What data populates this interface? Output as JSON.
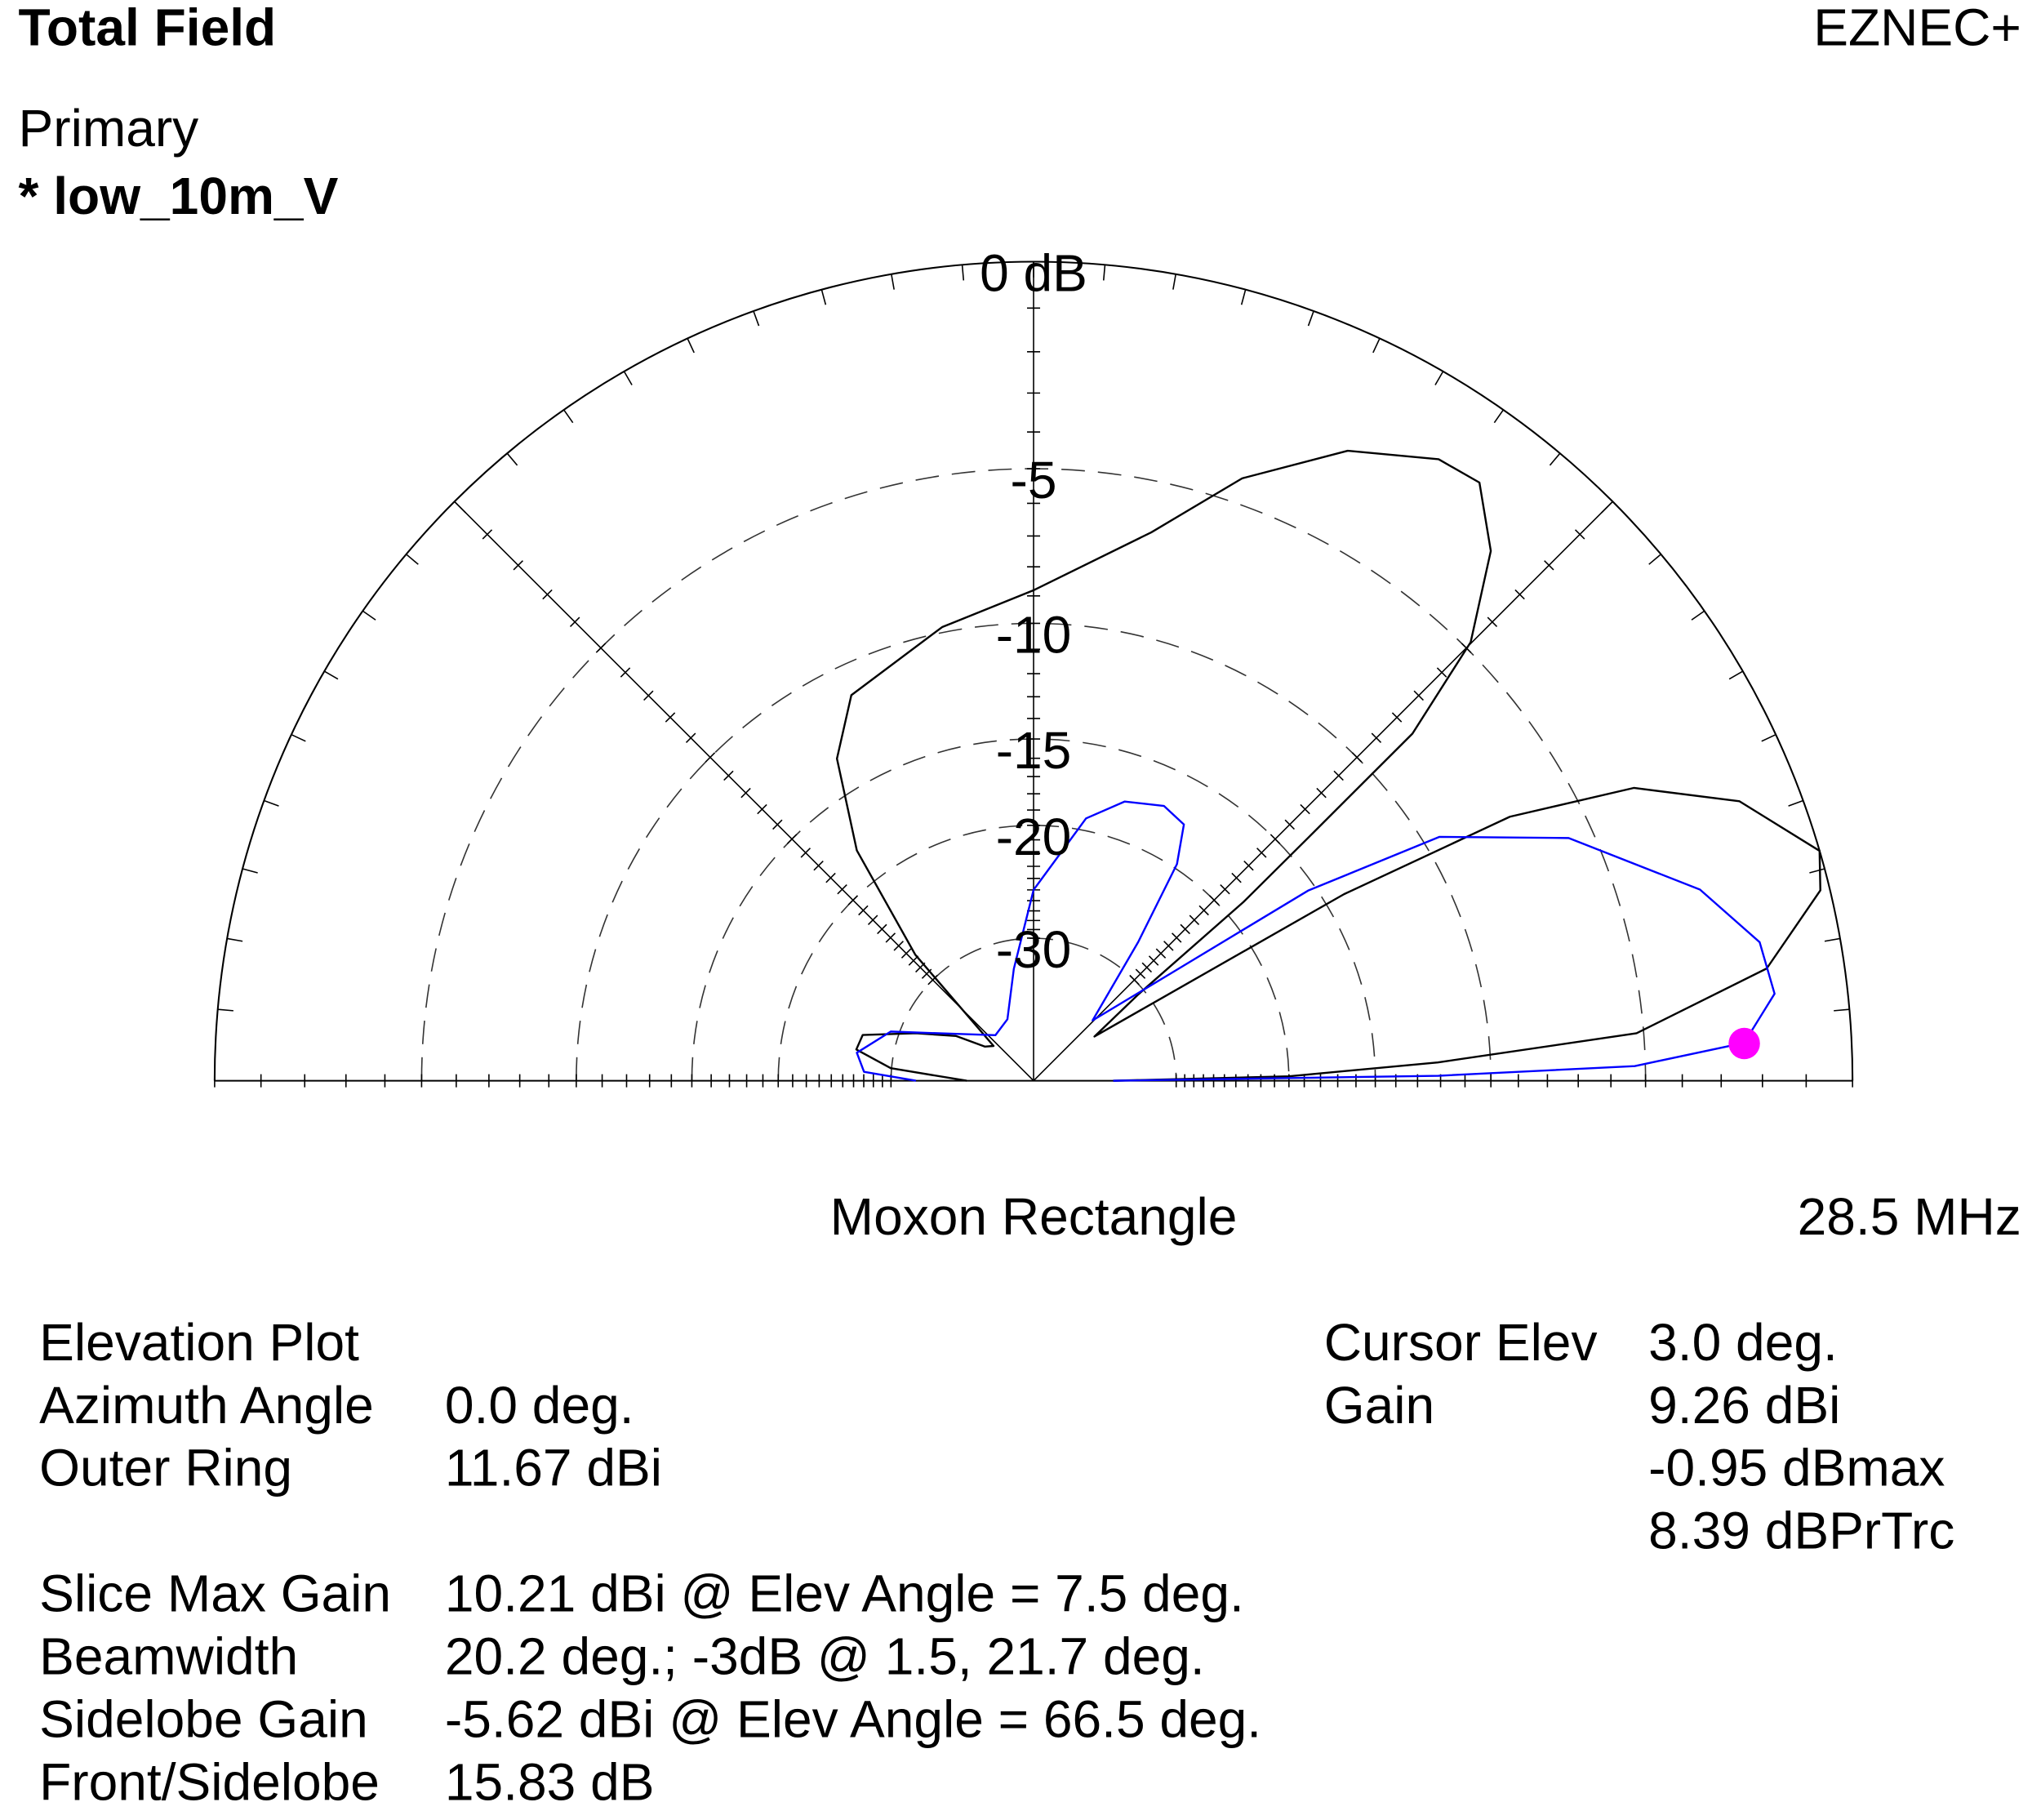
{
  "chart_data": {
    "type": "polar",
    "title": "Total Field",
    "program": "EZNEC+",
    "subtitle": "Moxon Rectangle",
    "frequency": "28.5 MHz",
    "scale": "arrl-log",
    "rticks": [
      {
        "value": 0,
        "label": "0 dB"
      },
      -5,
      -10,
      -15,
      -20,
      -30
    ],
    "series": [
      {
        "name": "Primary",
        "color": "#000000",
        "theta": [
          0,
          1,
          2.6,
          4.5,
          8.7,
          13.6,
          16.3,
          21.6,
          26,
          29,
          31,
          33,
          36,
          39.5,
          40.4,
          41.5,
          42.5,
          45.1,
          49.2,
          53.3,
          56.9,
          63.5,
          70.9,
          77.9,
          90,
          101.4,
          115.3,
          121.4,
          127.5,
          133.2,
          139,
          145,
          150,
          158,
          165,
          170,
          175,
          180
        ],
        "values": [
          -40,
          -20,
          -12.1,
          -5.2,
          -1.7,
          -0.2,
          0,
          -1.3,
          -3.5,
          -7,
          -14,
          -30,
          -41,
          -30.8,
          -18.7,
          -13.8,
          -8,
          -4.8,
          -2.7,
          -1.6,
          -1.7,
          -2.6,
          -4.3,
          -6.5,
          -8.8,
          -9.8,
          -11.2,
          -13.3,
          -17.8,
          -26.7,
          -47,
          -45,
          -38,
          -32,
          -26.3,
          -26,
          -29.9,
          -43
        ]
      },
      {
        "name": "* low_10m_V",
        "color": "#0000ff",
        "theta": [
          0,
          0.7,
          1.4,
          3.06,
          6.7,
          10.8,
          16,
          24.4,
          31,
          34.7,
          38,
          45.6,
          53,
          56.5,
          59.6,
          64.6,
          71.9,
          78.7,
          90,
          100,
          113,
          130,
          152.8,
          161,
          171,
          177,
          180
        ],
        "values": [
          -40,
          -12.1,
          -5.3,
          -2.41,
          -1.6,
          -1.76,
          -2.86,
          -5.7,
          -9.4,
          -15.4,
          -26.5,
          -39,
          -26.6,
          -19.7,
          -17.4,
          -17,
          -17.6,
          -19.2,
          -25,
          -33.9,
          -43,
          -45,
          -35.5,
          -29,
          -26.1,
          -27,
          -33.3
        ]
      }
    ],
    "cursor": {
      "theta": 3.0,
      "value": -2.41,
      "color": "#ff00ff"
    },
    "plot_info": [
      {
        "label": "Elevation Plot"
      },
      {
        "label": "Azimuth Angle",
        "value": "0.0 deg."
      },
      {
        "label": "Outer Ring",
        "value": "11.67 dBi"
      }
    ],
    "lobe_info": [
      {
        "label": "Slice Max Gain",
        "value": "10.21 dBi @ Elev Angle = 7.5 deg."
      },
      {
        "label": "Beamwidth",
        "value": "20.2 deg.; -3dB @ 1.5, 21.7 deg."
      },
      {
        "label": "Sidelobe Gain",
        "value": "-5.62 dBi @ Elev Angle = 66.5 deg."
      },
      {
        "label": "Front/Sidelobe",
        "value": "15.83 dB"
      }
    ],
    "cursor_info": [
      {
        "label": "Cursor Elev",
        "value": "3.0 deg."
      },
      {
        "label": "Gain",
        "value": "9.26 dBi"
      },
      {
        "value": "-0.95 dBmax"
      },
      {
        "value": "8.39 dBPrTrc"
      }
    ]
  }
}
